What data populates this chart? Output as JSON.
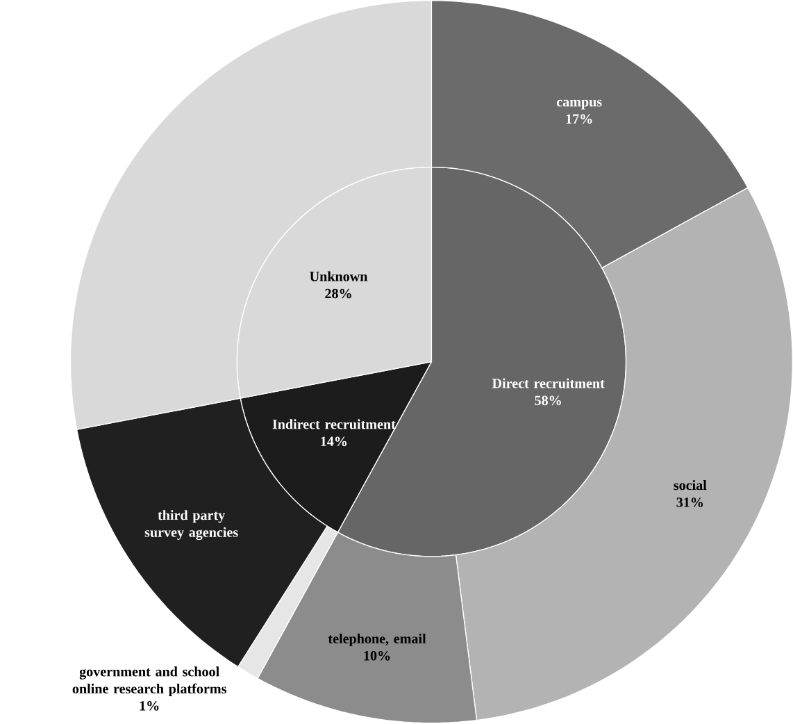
{
  "chart_data": [
    {
      "type": "pie",
      "categories": [
        "Direct recruitment",
        "Indirect recruitment",
        "Unknown"
      ],
      "values": [
        58,
        14,
        28
      ],
      "colors": [
        "#666666",
        "#1c1c1c",
        "#d9d9d9"
      ],
      "value_labels": [
        "58%",
        "14%",
        "28%"
      ]
    },
    {
      "type": "donut",
      "categories": [
        "campus",
        "social",
        "telephone, email",
        "government and school online research platforms",
        "third party survey agencies",
        null
      ],
      "values": [
        17,
        31,
        10,
        1,
        13,
        28
      ],
      "colors": [
        "#6b6b6b",
        "#b3b3b3",
        "#8c8c8c",
        "#e6e6e6",
        "#202020",
        "#d9d9d9"
      ],
      "value_labels": [
        "17%",
        "31%",
        "10%",
        "1%",
        null,
        null
      ]
    }
  ]
}
